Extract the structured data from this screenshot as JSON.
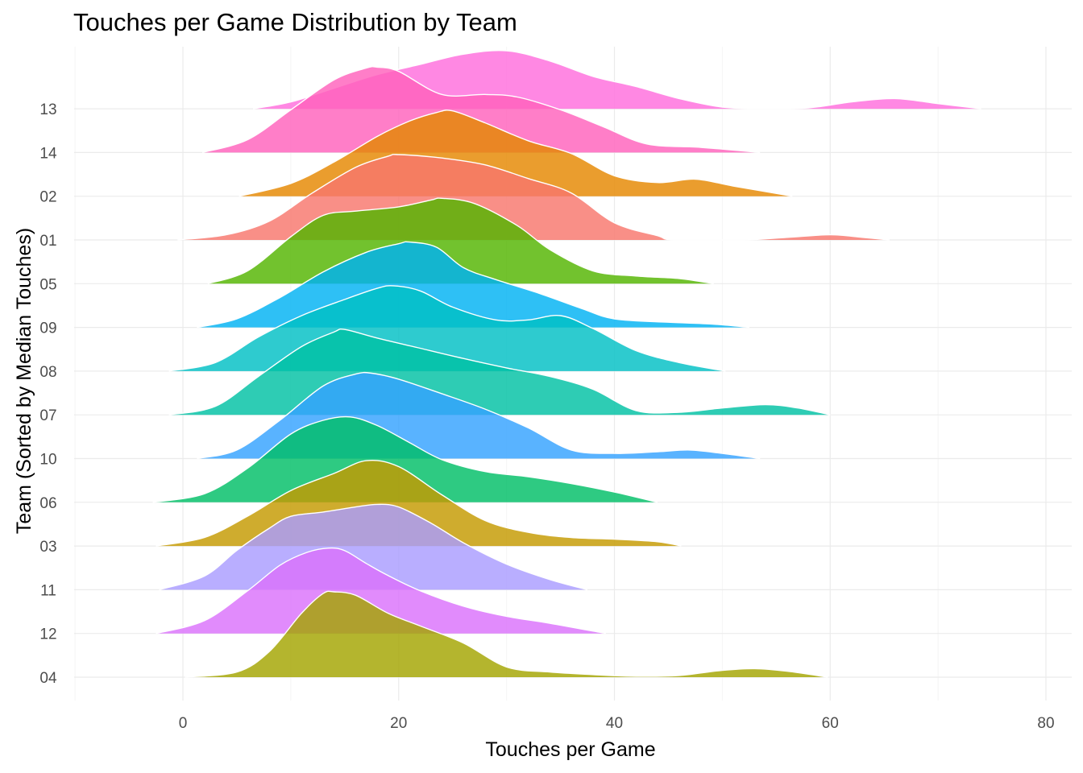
{
  "chart_data": {
    "type": "ridgeline",
    "title": "Touches per Game Distribution by Team",
    "xlabel": "Touches per Game",
    "ylabel": "Team (Sorted by Median Touches)",
    "xlim": [
      -10,
      82
    ],
    "x_ticks": [
      0,
      20,
      40,
      60,
      80
    ],
    "grid": true,
    "legend": "none",
    "series": [
      {
        "name": "04",
        "color": "#A3A500",
        "range": [
          0.2,
          59.8
        ],
        "density": [
          [
            0.2,
            0
          ],
          [
            5,
            0.06
          ],
          [
            8,
            0.3
          ],
          [
            11,
            0.75
          ],
          [
            13,
            0.98
          ],
          [
            14,
            1
          ],
          [
            16,
            0.96
          ],
          [
            19,
            0.75
          ],
          [
            22,
            0.6
          ],
          [
            26,
            0.4
          ],
          [
            30,
            0.12
          ],
          [
            34,
            0.06
          ],
          [
            38,
            0.03
          ],
          [
            42,
            0.01
          ],
          [
            46,
            0.02
          ],
          [
            50,
            0.08
          ],
          [
            53,
            0.1
          ],
          [
            56,
            0.07
          ],
          [
            59.8,
            0
          ]
        ]
      },
      {
        "name": "12",
        "color": "#DB72FB",
        "range": [
          -2.5,
          39.2
        ],
        "density": [
          [
            -2.5,
            0
          ],
          [
            2,
            0.15
          ],
          [
            6,
            0.5
          ],
          [
            9,
            0.8
          ],
          [
            11.5,
            0.95
          ],
          [
            13.5,
            1
          ],
          [
            15,
            0.97
          ],
          [
            17,
            0.82
          ],
          [
            19,
            0.68
          ],
          [
            22,
            0.5
          ],
          [
            26,
            0.32
          ],
          [
            30,
            0.2
          ],
          [
            34,
            0.12
          ],
          [
            39.2,
            0
          ]
        ]
      },
      {
        "name": "11",
        "color": "#AA9CFF",
        "range": [
          -2.2,
          37.5
        ],
        "density": [
          [
            -2.2,
            0
          ],
          [
            2,
            0.16
          ],
          [
            5,
            0.46
          ],
          [
            8,
            0.72
          ],
          [
            10,
            0.86
          ],
          [
            13,
            0.91
          ],
          [
            16,
            0.97
          ],
          [
            18,
            1
          ],
          [
            20,
            0.97
          ],
          [
            23,
            0.78
          ],
          [
            26,
            0.55
          ],
          [
            30,
            0.3
          ],
          [
            34,
            0.12
          ],
          [
            37.5,
            0
          ]
        ]
      },
      {
        "name": "03",
        "color": "#C59A00",
        "range": [
          -2.5,
          46.2
        ],
        "density": [
          [
            -2.5,
            0
          ],
          [
            2,
            0.1
          ],
          [
            6,
            0.35
          ],
          [
            10,
            0.65
          ],
          [
            14,
            0.85
          ],
          [
            17,
            1
          ],
          [
            20,
            0.93
          ],
          [
            24,
            0.6
          ],
          [
            28,
            0.3
          ],
          [
            32,
            0.16
          ],
          [
            36,
            0.1
          ],
          [
            40,
            0.08
          ],
          [
            44,
            0.05
          ],
          [
            46.2,
            0
          ]
        ]
      },
      {
        "name": "06",
        "color": "#00BE67",
        "range": [
          -2.8,
          44
        ],
        "density": [
          [
            -2.8,
            0
          ],
          [
            2,
            0.1
          ],
          [
            6,
            0.4
          ],
          [
            10,
            0.8
          ],
          [
            13,
            0.96
          ],
          [
            15.5,
            1
          ],
          [
            18,
            0.9
          ],
          [
            21,
            0.7
          ],
          [
            24,
            0.5
          ],
          [
            28,
            0.36
          ],
          [
            32,
            0.3
          ],
          [
            36,
            0.22
          ],
          [
            40,
            0.12
          ],
          [
            44,
            0
          ]
        ]
      },
      {
        "name": "10",
        "color": "#35A2FF",
        "range": [
          1.3,
          53.5
        ],
        "density": [
          [
            1.3,
            0
          ],
          [
            5,
            0.1
          ],
          [
            9,
            0.45
          ],
          [
            13,
            0.85
          ],
          [
            16,
            0.99
          ],
          [
            17.5,
            1
          ],
          [
            20,
            0.93
          ],
          [
            24,
            0.76
          ],
          [
            28,
            0.58
          ],
          [
            32,
            0.36
          ],
          [
            36,
            0.1
          ],
          [
            40,
            0.06
          ],
          [
            44,
            0.08
          ],
          [
            47,
            0.1
          ],
          [
            50,
            0.06
          ],
          [
            53.5,
            0
          ]
        ]
      },
      {
        "name": "07",
        "color": "#00C1A3",
        "range": [
          -1.3,
          60
        ],
        "density": [
          [
            -1.3,
            0
          ],
          [
            3,
            0.1
          ],
          [
            7,
            0.45
          ],
          [
            11,
            0.8
          ],
          [
            14,
            0.97
          ],
          [
            15,
            1
          ],
          [
            18,
            0.9
          ],
          [
            22,
            0.78
          ],
          [
            26,
            0.66
          ],
          [
            30,
            0.55
          ],
          [
            34,
            0.45
          ],
          [
            38,
            0.3
          ],
          [
            42,
            0.05
          ],
          [
            46,
            0.03
          ],
          [
            50,
            0.08
          ],
          [
            54,
            0.12
          ],
          [
            57,
            0.08
          ],
          [
            60,
            0
          ]
        ]
      },
      {
        "name": "08",
        "color": "#00BFC4",
        "range": [
          -1.3,
          50.3
        ],
        "density": [
          [
            -1.3,
            0
          ],
          [
            3,
            0.1
          ],
          [
            7,
            0.4
          ],
          [
            11,
            0.65
          ],
          [
            15,
            0.84
          ],
          [
            18,
            0.97
          ],
          [
            19.5,
            1
          ],
          [
            22,
            0.94
          ],
          [
            25,
            0.75
          ],
          [
            29,
            0.6
          ],
          [
            32,
            0.6
          ],
          [
            35,
            0.65
          ],
          [
            38,
            0.5
          ],
          [
            42,
            0.24
          ],
          [
            46,
            0.1
          ],
          [
            50.3,
            0
          ]
        ]
      },
      {
        "name": "09",
        "color": "#00B2F3",
        "range": [
          1.3,
          52.5
        ],
        "density": [
          [
            1.3,
            0
          ],
          [
            5,
            0.1
          ],
          [
            9,
            0.35
          ],
          [
            13,
            0.65
          ],
          [
            17,
            0.88
          ],
          [
            20,
            0.98
          ],
          [
            21,
            1
          ],
          [
            23.5,
            0.94
          ],
          [
            26,
            0.7
          ],
          [
            29,
            0.56
          ],
          [
            33,
            0.4
          ],
          [
            37,
            0.22
          ],
          [
            40,
            0.1
          ],
          [
            45,
            0.06
          ],
          [
            49,
            0.04
          ],
          [
            52.5,
            0
          ]
        ]
      },
      {
        "name": "05",
        "color": "#53B400",
        "range": [
          2.3,
          49.2
        ],
        "density": [
          [
            2.3,
            0
          ],
          [
            6,
            0.15
          ],
          [
            10,
            0.55
          ],
          [
            13,
            0.8
          ],
          [
            16,
            0.85
          ],
          [
            20,
            0.9
          ],
          [
            23,
            0.98
          ],
          [
            24,
            1
          ],
          [
            27,
            0.94
          ],
          [
            31,
            0.68
          ],
          [
            34,
            0.4
          ],
          [
            38,
            0.15
          ],
          [
            42,
            0.09
          ],
          [
            46,
            0.06
          ],
          [
            49.2,
            0
          ]
        ]
      },
      {
        "name": "01",
        "color": "#F8766D",
        "range": [
          -0.5,
          65.5
        ],
        "density": [
          [
            -0.5,
            0
          ],
          [
            4,
            0.06
          ],
          [
            8,
            0.22
          ],
          [
            12,
            0.55
          ],
          [
            16,
            0.85
          ],
          [
            19,
            0.98
          ],
          [
            20,
            1
          ],
          [
            24,
            0.96
          ],
          [
            28,
            0.88
          ],
          [
            32,
            0.72
          ],
          [
            36,
            0.55
          ],
          [
            40,
            0.2
          ],
          [
            44,
            0.05
          ],
          [
            45.5,
            0
          ],
          [
            52,
            0
          ],
          [
            56,
            0.03
          ],
          [
            60,
            0.06
          ],
          [
            63,
            0.03
          ],
          [
            65.5,
            0
          ]
        ]
      },
      {
        "name": "02",
        "color": "#E58700",
        "range": [
          5.2,
          56.5
        ],
        "density": [
          [
            5.2,
            0
          ],
          [
            10,
            0.15
          ],
          [
            14,
            0.4
          ],
          [
            18,
            0.7
          ],
          [
            21,
            0.88
          ],
          [
            23.5,
            0.98
          ],
          [
            25,
            1
          ],
          [
            28,
            0.86
          ],
          [
            32,
            0.65
          ],
          [
            36,
            0.5
          ],
          [
            40,
            0.24
          ],
          [
            44,
            0.16
          ],
          [
            47.5,
            0.2
          ],
          [
            51,
            0.12
          ],
          [
            56.5,
            0
          ]
        ]
      },
      {
        "name": "14",
        "color": "#FF62BC",
        "range": [
          1.8,
          53.5
        ],
        "density": [
          [
            1.8,
            0
          ],
          [
            6,
            0.15
          ],
          [
            10,
            0.5
          ],
          [
            14,
            0.85
          ],
          [
            17,
            0.99
          ],
          [
            18,
            1
          ],
          [
            20,
            0.95
          ],
          [
            24,
            0.68
          ],
          [
            28,
            0.68
          ],
          [
            31,
            0.65
          ],
          [
            35,
            0.5
          ],
          [
            39,
            0.3
          ],
          [
            43,
            0.1
          ],
          [
            48,
            0.06
          ],
          [
            53.5,
            0
          ]
        ]
      },
      {
        "name": "13",
        "color": "#FF6EDD",
        "range": [
          6.5,
          74
        ],
        "density": [
          [
            6.5,
            0
          ],
          [
            10,
            0.08
          ],
          [
            14,
            0.24
          ],
          [
            18,
            0.4
          ],
          [
            22,
            0.52
          ],
          [
            26,
            0.64
          ],
          [
            30,
            0.68
          ],
          [
            34,
            0.56
          ],
          [
            38,
            0.38
          ],
          [
            42,
            0.26
          ],
          [
            46,
            0.12
          ],
          [
            50,
            0.02
          ],
          [
            54,
            0
          ],
          [
            58,
            0.01
          ],
          [
            62,
            0.08
          ],
          [
            66,
            0.12
          ],
          [
            70,
            0.06
          ],
          [
            74,
            0
          ]
        ]
      }
    ]
  }
}
